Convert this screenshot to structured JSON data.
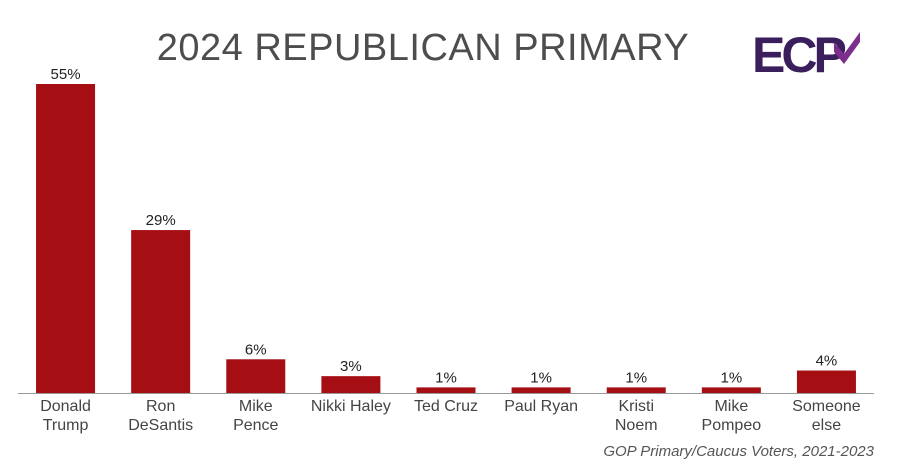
{
  "header": {
    "title": "2024 REPUBLICAN PRIMARY",
    "logo_text": "ECP"
  },
  "footnote": "GOP Primary/Caucus Voters, 2021-2023",
  "colors": {
    "bar": "#a50f14",
    "axis": "#999999",
    "logo": "#3a1f5c",
    "logo_accent": "#7b2e8e"
  },
  "chart_data": {
    "type": "bar",
    "title": "2024 REPUBLICAN PRIMARY",
    "xlabel": "",
    "ylabel": "",
    "ylim": [
      0,
      55
    ],
    "grid": false,
    "categories": [
      [
        "Donald",
        "Trump"
      ],
      [
        "Ron",
        "DeSantis"
      ],
      [
        "Mike",
        "Pence"
      ],
      [
        "Nikki Haley"
      ],
      [
        "Ted Cruz"
      ],
      [
        "Paul Ryan"
      ],
      [
        "Kristi",
        "Noem"
      ],
      [
        "Mike",
        "Pompeo"
      ],
      [
        "Someone",
        "else"
      ]
    ],
    "values": [
      55,
      29,
      6,
      3,
      1,
      1,
      1,
      1,
      4
    ],
    "value_labels": [
      "55%",
      "29%",
      "6%",
      "3%",
      "1%",
      "1%",
      "1%",
      "1%",
      "4%"
    ]
  }
}
